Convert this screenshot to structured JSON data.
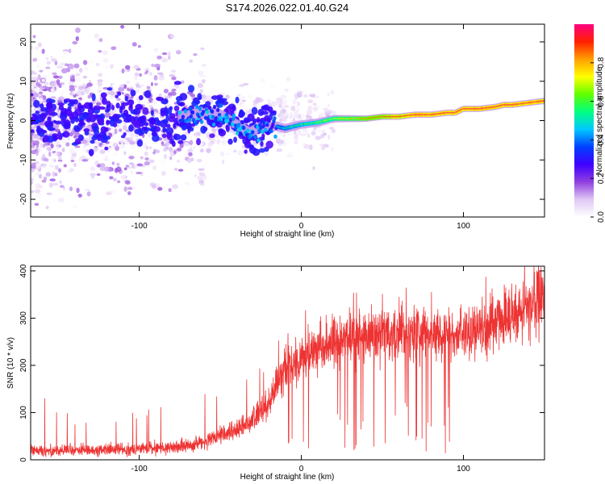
{
  "chart_data": [
    {
      "type": "heatmap",
      "title": "S174.2026.022.01.40.G24",
      "xlabel": "Height of straight line (km)",
      "ylabel": "Frequency (Hz)",
      "xlim": [
        -167,
        150
      ],
      "ylim": [
        -24.5,
        24.5
      ],
      "xticks": [
        -100,
        0,
        100
      ],
      "yticks": [
        -20,
        -10,
        0,
        10,
        20
      ],
      "colorbar": {
        "label": "Normalized spectral amplitude",
        "ticks": [
          "0.0",
          "0.2",
          "0.4",
          "0.6",
          "0.8"
        ],
        "tick_values": [
          0.0,
          0.2,
          0.4,
          0.6,
          0.8
        ],
        "range": [
          0,
          1
        ],
        "colormap": [
          "#ffffff",
          "#e0c8f5",
          "#9040e0",
          "#4000ff",
          "#0040ff",
          "#00c8ff",
          "#00ff80",
          "#60ff00",
          "#ffff00",
          "#ffa000",
          "#ff2000",
          "#ff0080"
        ]
      },
      "ridge": {
        "description": "frequency of peak spectral amplitude vs height",
        "x": [
          -167,
          -140,
          -110,
          -90,
          -70,
          -62,
          -50,
          -40,
          -32,
          -25,
          -20,
          -15,
          -10,
          0,
          10,
          20,
          30,
          40,
          50,
          60,
          70,
          80,
          90,
          95,
          100,
          110,
          120,
          125,
          130,
          140,
          150
        ],
        "y": [
          0,
          0.5,
          1.0,
          0.5,
          1.0,
          2.0,
          1.5,
          -1.0,
          -3.0,
          -1.5,
          -1.5,
          -1.5,
          -2.0,
          -1.0,
          -0.5,
          0.5,
          0.5,
          0.5,
          1.0,
          1.0,
          1.5,
          1.5,
          2.0,
          2.0,
          3.0,
          3.0,
          3.5,
          4.0,
          4.0,
          4.5,
          5.0
        ]
      }
    },
    {
      "type": "line",
      "xlabel": "Height of straight line (km)",
      "ylabel": "SNR (10 * v/v)",
      "xlim": [
        -167,
        150
      ],
      "ylim": [
        0,
        410
      ],
      "xticks": [
        -100,
        0,
        100
      ],
      "yticks": [
        0,
        100,
        200,
        300,
        400
      ],
      "line_color": "#ee3333",
      "trend": {
        "description": "smoothed SNR trend vs height",
        "x": [
          -167,
          -140,
          -110,
          -90,
          -80,
          -70,
          -60,
          -50,
          -40,
          -30,
          -20,
          -15,
          -10,
          -5,
          0,
          10,
          20,
          30,
          40,
          50,
          60,
          70,
          80,
          90,
          100,
          110,
          120,
          130,
          140,
          150
        ],
        "y": [
          20,
          20,
          22,
          25,
          27,
          30,
          38,
          50,
          65,
          85,
          120,
          160,
          190,
          205,
          215,
          235,
          250,
          260,
          265,
          268,
          268,
          270,
          268,
          265,
          268,
          275,
          290,
          305,
          325,
          350
        ]
      }
    }
  ]
}
